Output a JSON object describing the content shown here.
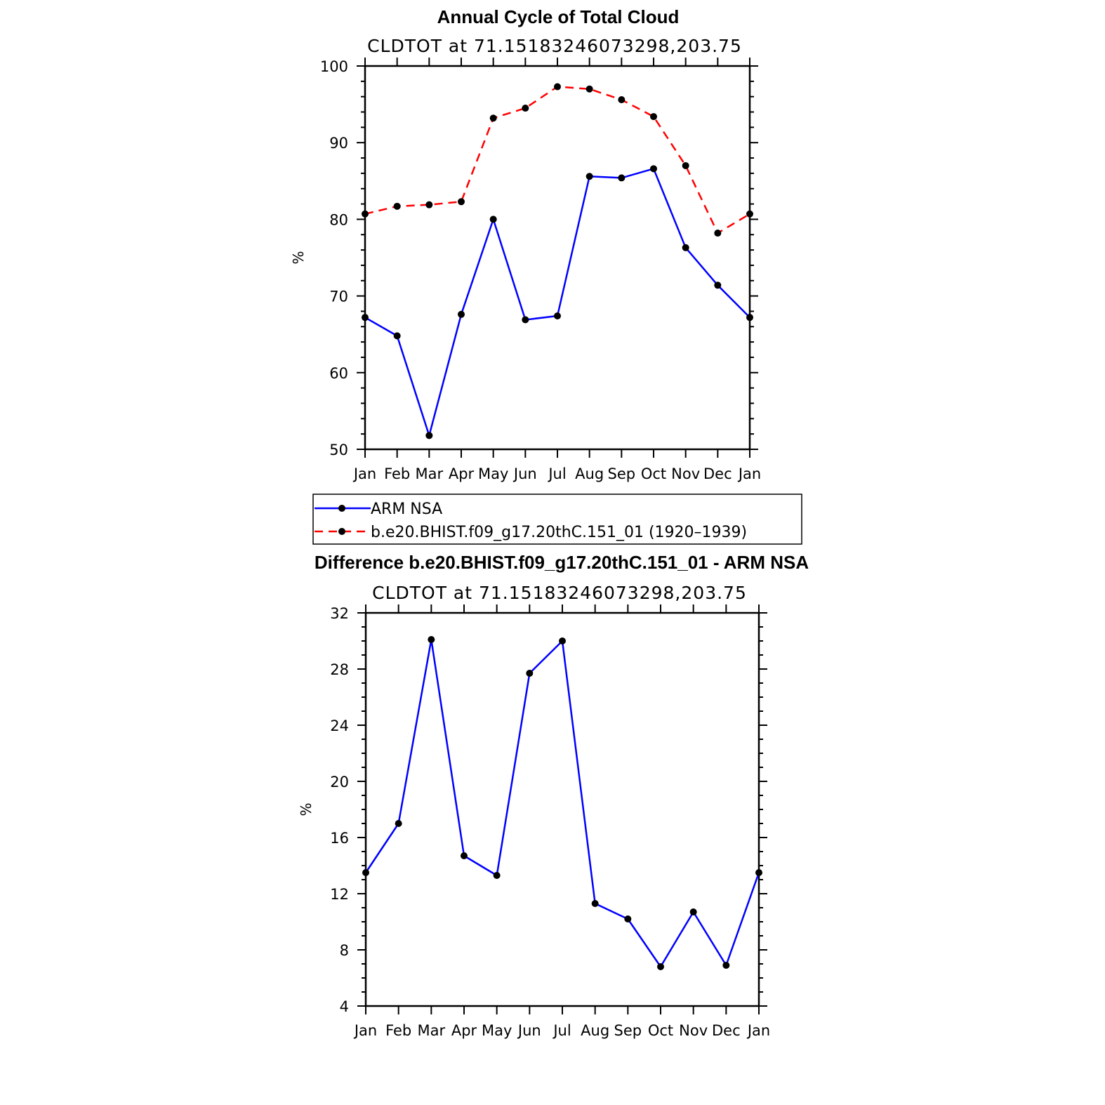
{
  "chart_data": [
    {
      "type": "line",
      "title": "Annual Cycle of Total Cloud",
      "subtitle": "CLDTOT at 71.15183246073298,203.75",
      "ylabel": "%",
      "xlabel": "",
      "ylim": [
        50,
        100
      ],
      "yticks": [
        50,
        60,
        70,
        80,
        90,
        100
      ],
      "categories": [
        "Jan",
        "Feb",
        "Mar",
        "Apr",
        "May",
        "Jun",
        "Jul",
        "Aug",
        "Sep",
        "Oct",
        "Nov",
        "Dec",
        "Jan"
      ],
      "series": [
        {
          "name": "ARM NSA",
          "color": "#0000ff",
          "dash": "solid",
          "values": [
            67.2,
            64.8,
            51.8,
            67.6,
            80.0,
            66.9,
            67.4,
            85.6,
            85.4,
            86.6,
            76.3,
            71.4,
            67.2
          ]
        },
        {
          "name": "b.e20.BHIST.f09_g17.20thC.151_01 (1920–1939)",
          "color": "#ff0000",
          "dash": "dashed",
          "values": [
            80.7,
            81.7,
            81.9,
            82.3,
            93.2,
            94.5,
            97.3,
            97.0,
            95.6,
            93.4,
            87.0,
            78.2,
            80.7
          ]
        }
      ],
      "legend": "below",
      "grid": false
    },
    {
      "type": "line",
      "title": "Difference b.e20.BHIST.f09_g17.20thC.151_01 - ARM NSA",
      "subtitle": "CLDTOT at 71.15183246073298,203.75",
      "ylabel": "%",
      "xlabel": "",
      "ylim": [
        4,
        32
      ],
      "yticks": [
        4,
        8,
        12,
        16,
        20,
        24,
        28,
        32
      ],
      "categories": [
        "Jan",
        "Feb",
        "Mar",
        "Apr",
        "May",
        "Jun",
        "Jul",
        "Aug",
        "Sep",
        "Oct",
        "Nov",
        "Dec",
        "Jan"
      ],
      "series": [
        {
          "color": "#0000ff",
          "dash": "solid",
          "values": [
            13.5,
            17.0,
            30.1,
            14.7,
            13.3,
            27.7,
            30.0,
            11.3,
            10.2,
            6.8,
            10.7,
            6.9,
            13.5
          ]
        }
      ],
      "grid": false
    }
  ]
}
